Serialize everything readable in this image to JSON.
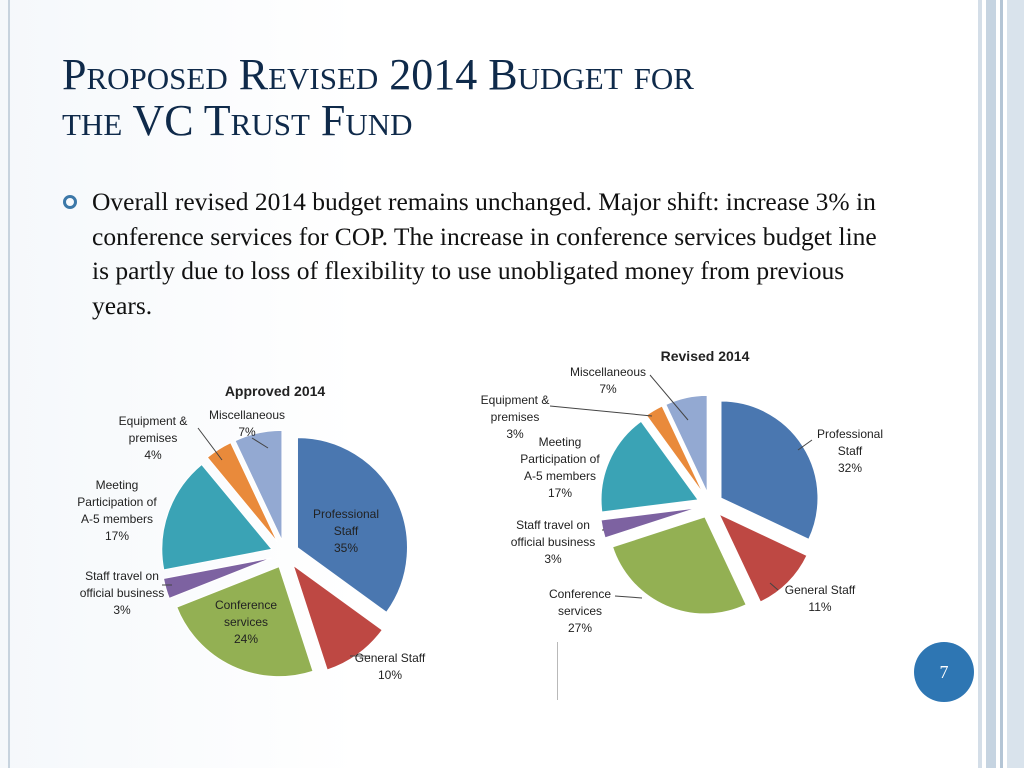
{
  "slide": {
    "title_line1": "Proposed Revised 2014 Budget for",
    "title_line2": "the VC Trust Fund",
    "body": "Overall revised 2014 budget remains unchanged. Major shift: increase 3% in conference services for COP. The increase in conference services budget line is partly due to loss of flexibility to use unobligated money from previous years.",
    "page_number": "7"
  },
  "theme": {
    "title_color": "#0f2a4a",
    "bullet_color": "#3c78a8",
    "badge_color": "#2e76b3"
  },
  "chart_data": [
    {
      "type": "pie",
      "title": "Approved 2014",
      "slices": [
        {
          "label": "Professional Staff",
          "percent": 35,
          "color": "#4a77b0"
        },
        {
          "label": "General Staff",
          "percent": 10,
          "color": "#be4843"
        },
        {
          "label": "Conference services",
          "percent": 24,
          "color": "#93b053"
        },
        {
          "label": "Staff travel on official business",
          "percent": 3,
          "color": "#7d62a1"
        },
        {
          "label": "Meeting Participation of A-5 members",
          "percent": 17,
          "color": "#3aa3b5"
        },
        {
          "label": "Equipment & premises",
          "percent": 4,
          "color": "#e98a3b"
        },
        {
          "label": "Miscellaneous",
          "percent": 7,
          "color": "#93a9d2"
        }
      ]
    },
    {
      "type": "pie",
      "title": "Revised 2014",
      "slices": [
        {
          "label": "Professional Staff",
          "percent": 32,
          "color": "#4a77b0"
        },
        {
          "label": "General Staff",
          "percent": 11,
          "color": "#be4843"
        },
        {
          "label": "Conference services",
          "percent": 27,
          "color": "#93b053"
        },
        {
          "label": "Staff travel on official business",
          "percent": 3,
          "color": "#7d62a1"
        },
        {
          "label": "Meeting Participation of A-5 members",
          "percent": 17,
          "color": "#3aa3b5"
        },
        {
          "label": "Equipment & premises",
          "percent": 3,
          "color": "#e98a3b"
        },
        {
          "label": "Miscellaneous",
          "percent": 7,
          "color": "#93a9d2"
        }
      ]
    }
  ]
}
